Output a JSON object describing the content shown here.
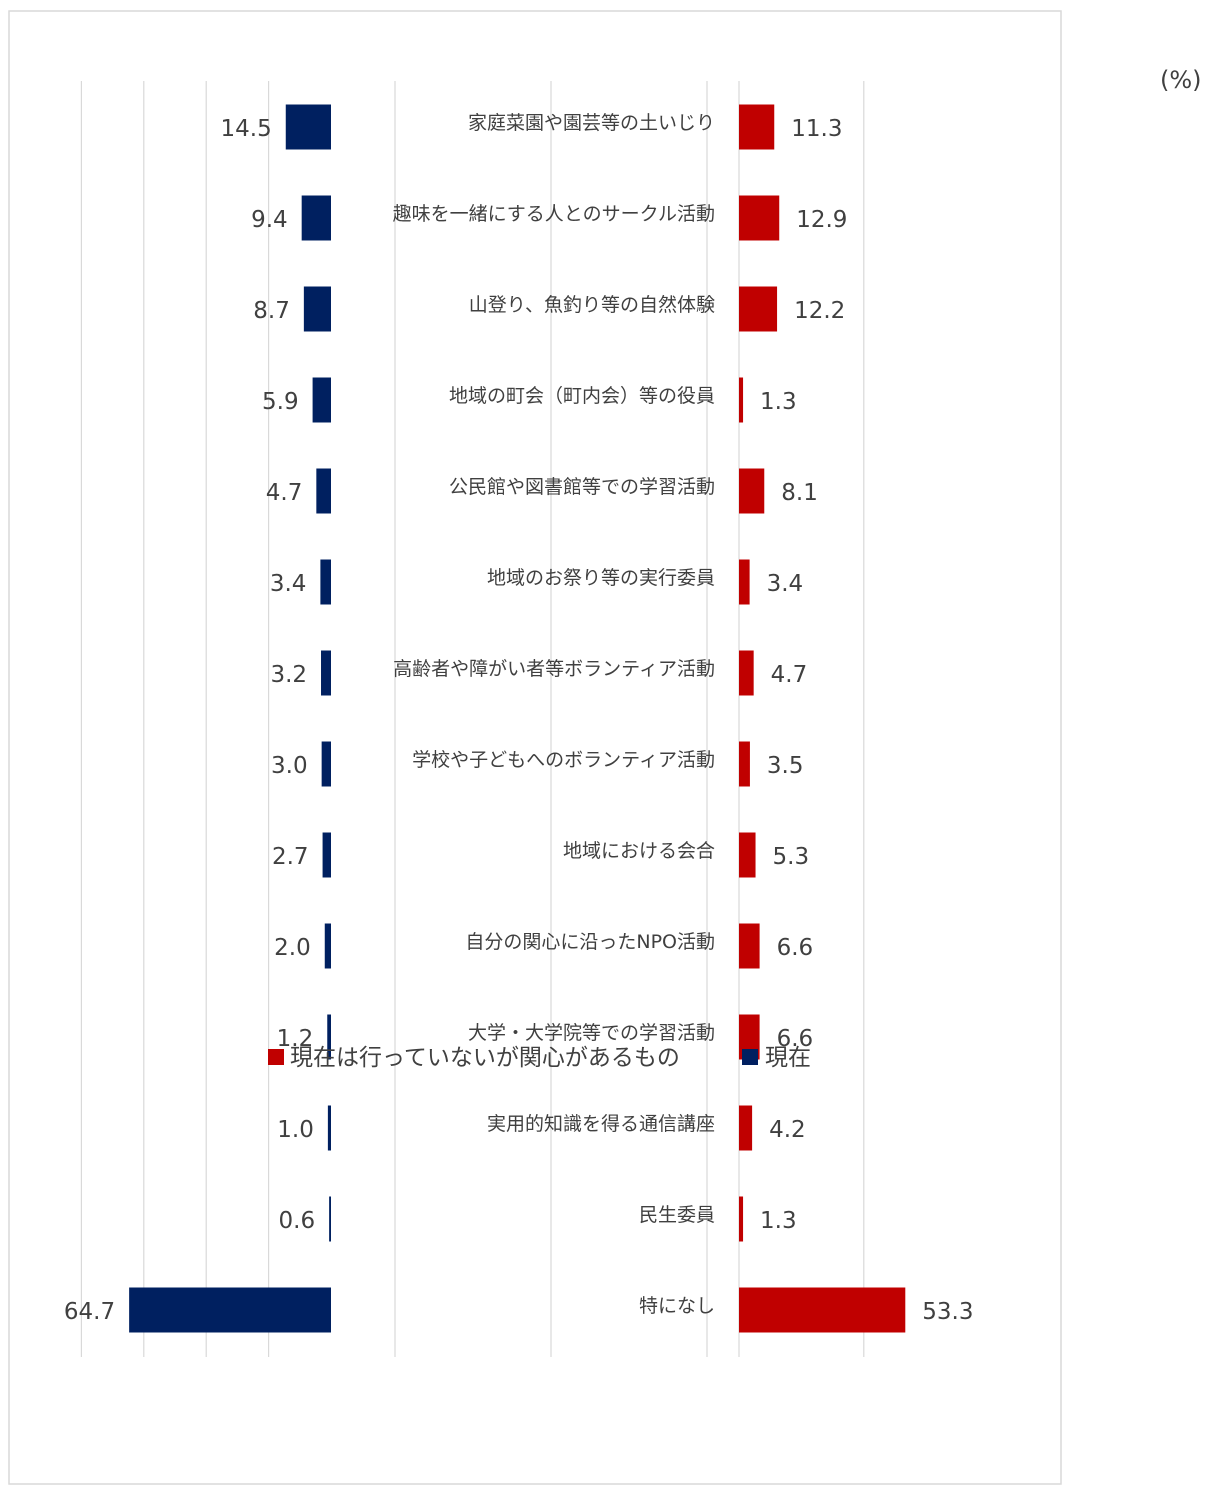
{
  "chart_data": {
    "type": "bar",
    "unit_label": "(%)",
    "categories": [
      "家庭菜園や園芸等の土いじり",
      "趣味を一緒にする人とのサークル活動",
      "山登り、魚釣り等の自然体験",
      "地域の町会（町内会）等の役員",
      "公民館や図書館等での学習活動",
      "地域のお祭り等の実行委員",
      "高齢者や障がい者等ボランティア活動",
      "学校や子どもへのボランティア活動",
      "地域における会合",
      "自分の関心に沿ったNPO活動",
      "大学・大学院等での学習活動",
      "実用的知識を得る通信講座",
      "民生委員",
      "特になし"
    ],
    "series": [
      {
        "name": "現在",
        "color": "#002060",
        "side": "left",
        "values": [
          14.5,
          9.4,
          8.7,
          5.9,
          4.7,
          3.4,
          3.2,
          3.0,
          2.7,
          2.0,
          1.2,
          1.0,
          0.6,
          64.7
        ]
      },
      {
        "name": "現在は行っていないが関心があるもの",
        "color": "#C00000",
        "side": "right",
        "values": [
          11.3,
          12.9,
          12.2,
          1.3,
          8.1,
          3.4,
          4.7,
          3.5,
          5.3,
          6.6,
          6.6,
          4.2,
          1.3,
          53.3
        ]
      }
    ],
    "value_labels_left": [
      "14.5",
      "9.4",
      "8.7",
      "5.9",
      "4.7",
      "3.4",
      "3.2",
      "3.0",
      "2.7",
      "2.0",
      "1.2",
      "1.0",
      "0.6",
      "64.7"
    ],
    "value_labels_right": [
      "11.3",
      "12.9",
      "12.2",
      "1.3",
      "8.1",
      "3.4",
      "4.7",
      "3.5",
      "5.3",
      "6.6",
      "6.6",
      "4.2",
      "1.3",
      "53.3"
    ],
    "legend": {
      "placement": "bottom",
      "order": [
        "現在は行っていないが関心があるもの",
        "現在"
      ]
    },
    "left_xlim": [
      0,
      80
    ],
    "right_xlim": [
      0,
      80
    ],
    "gridlines": true
  }
}
